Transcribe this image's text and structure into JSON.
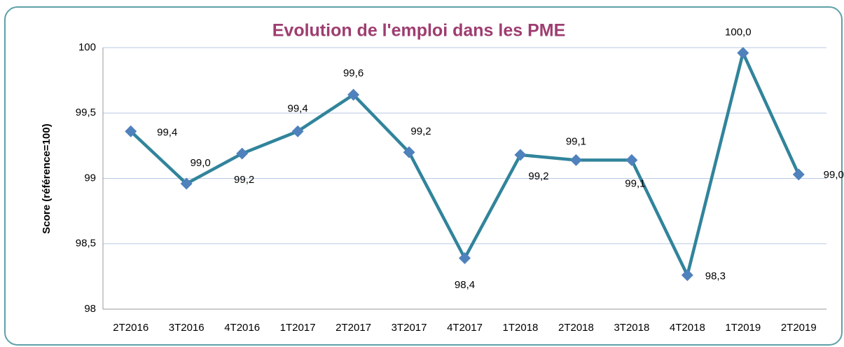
{
  "chart_data": {
    "type": "line",
    "title": "Evolution de l'emploi dans les PME",
    "y_label": "Score (référence=100)",
    "categories": [
      "2T2016",
      "3T2016",
      "4T2016",
      "1T2017",
      "2T2017",
      "3T2017",
      "4T2017",
      "1T2018",
      "2T2018",
      "3T2018",
      "4T2018",
      "1T2019",
      "2T2019"
    ],
    "series": [
      {
        "name": "Score",
        "color": "#31849b",
        "marker_color": "#4f81bd",
        "values": [
          99.36,
          98.96,
          99.19,
          99.36,
          99.64,
          99.2,
          98.39,
          99.18,
          99.14,
          99.14,
          98.26,
          99.96,
          99.03
        ],
        "value_labels": [
          "99,4",
          "99,0",
          "99,2",
          "99,4",
          "99,6",
          "99,2",
          "98,4",
          "99,2",
          "99,1",
          "99,1",
          "98,3",
          "100,0",
          "99,0"
        ]
      }
    ],
    "ylim": [
      98,
      100
    ],
    "yticks": [
      98,
      {
        "value": 98.5,
        "label": "98,5"
      },
      99,
      {
        "value": 99.5,
        "label": "99,5"
      },
      100
    ],
    "grid": true
  }
}
